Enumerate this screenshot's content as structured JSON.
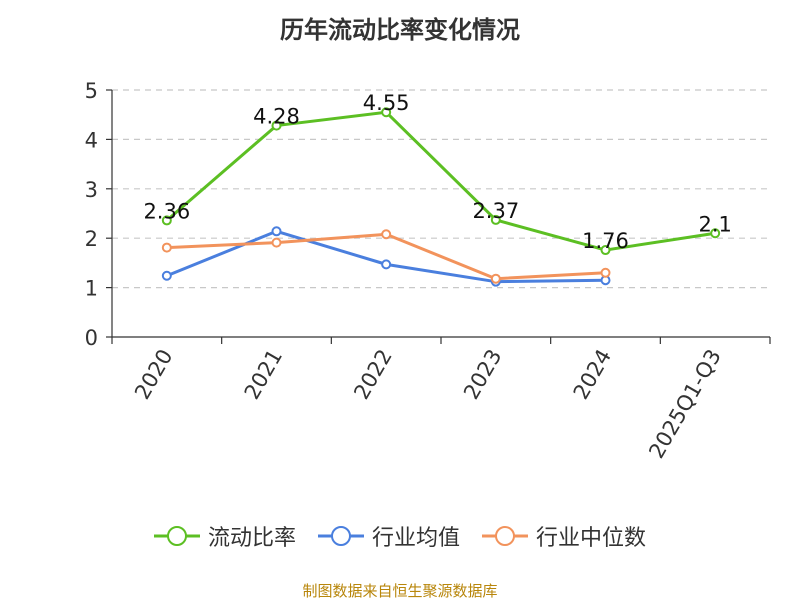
{
  "chart_data": {
    "type": "line",
    "title": "历年流动比率变化情况",
    "categories": [
      "2020",
      "2021",
      "2022",
      "2023",
      "2024",
      "2025Q1-Q3"
    ],
    "ylim": [
      0,
      5
    ],
    "yticks": [
      0,
      1,
      2,
      3,
      4,
      5
    ],
    "grid": true,
    "legend_position": "bottom",
    "series": [
      {
        "name": "流动比率",
        "color": "#5cbf23",
        "values": [
          2.36,
          4.28,
          4.55,
          2.37,
          1.76,
          2.1
        ],
        "labels": [
          "2.36",
          "4.28",
          "4.55",
          "2.37",
          "1.76",
          "2.1"
        ]
      },
      {
        "name": "行业均值",
        "color": "#4a7fde",
        "values": [
          1.24,
          2.14,
          1.47,
          1.12,
          1.15,
          null
        ]
      },
      {
        "name": "行业中位数",
        "color": "#f2935c",
        "values": [
          1.81,
          1.91,
          2.08,
          1.18,
          1.3,
          null
        ]
      }
    ]
  },
  "source_text": "制图数据来自恒生聚源数据库"
}
